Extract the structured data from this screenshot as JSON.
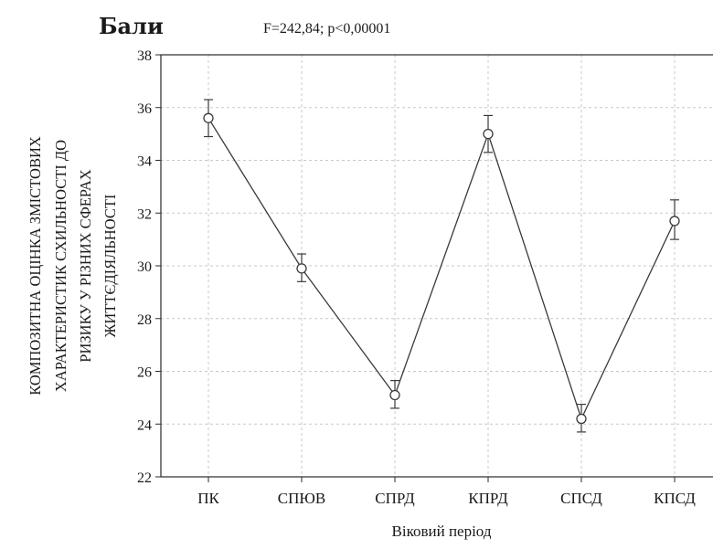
{
  "chart_data": {
    "type": "line",
    "title": "Бали",
    "subtitle": "F=242,84; p<0,00001",
    "xlabel": "Віковий період",
    "ylabel": [
      "КОМПОЗИТНА ОЦІНКА ЗМІСТОВИХ",
      "ХАРАКТЕРИСТИК СХИЛЬНОСТІ ДО",
      "РИЗИКУ У РІЗНИХ СФЕРАХ",
      "ЖИТТЄДІЯЛЬНОСТІ"
    ],
    "categories": [
      "ПК",
      "СПЮВ",
      "СПРД",
      "КПРД",
      "СПСД",
      "КПСД"
    ],
    "values": [
      35.6,
      29.9,
      25.1,
      35.0,
      24.2,
      31.7
    ],
    "error_low": [
      34.9,
      29.4,
      24.6,
      34.3,
      23.7,
      31.0
    ],
    "error_high": [
      36.3,
      30.45,
      25.65,
      35.7,
      24.75,
      32.5
    ],
    "ylim": [
      22,
      38
    ],
    "yticks": [
      "22",
      "24",
      "26",
      "28",
      "30",
      "32",
      "34",
      "36",
      "38"
    ],
    "grid": true,
    "legend": "none",
    "colors": {
      "line": "#3a3a3a",
      "grid": "#c8c8c8",
      "axis": "#2a2a2a"
    }
  }
}
